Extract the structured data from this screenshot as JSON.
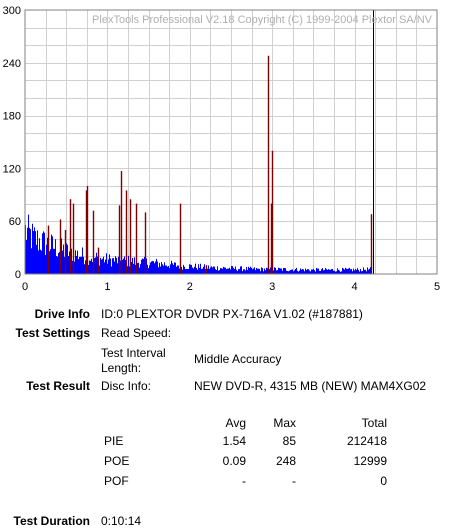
{
  "chart_data": {
    "type": "bar",
    "watermark": "PlexTools Professional V2.18 Copyright (C) 1999-2004 Plextor SA/NV",
    "xlim": [
      0,
      5
    ],
    "ylim": [
      0,
      300
    ],
    "x_ticks": [
      "0",
      "1",
      "2",
      "3",
      "4",
      "5"
    ],
    "y_ticks": [
      "0",
      "60",
      "120",
      "180",
      "240",
      "300"
    ],
    "grid": true,
    "end_marker_x": 4.22,
    "series": [
      {
        "color": "#0000ff",
        "envelope": [
          [
            0.0,
            72
          ],
          [
            0.05,
            66
          ],
          [
            0.1,
            60
          ],
          [
            0.2,
            54
          ],
          [
            0.3,
            48
          ],
          [
            0.4,
            43
          ],
          [
            0.5,
            38
          ],
          [
            0.6,
            34
          ],
          [
            0.7,
            31
          ],
          [
            0.8,
            28
          ],
          [
            0.9,
            26
          ],
          [
            1.0,
            24
          ],
          [
            1.2,
            22
          ],
          [
            1.4,
            20
          ],
          [
            1.6,
            18
          ],
          [
            1.8,
            15
          ],
          [
            2.0,
            13
          ],
          [
            2.2,
            11
          ],
          [
            2.4,
            10
          ],
          [
            2.6,
            9
          ],
          [
            2.8,
            8
          ],
          [
            3.0,
            8
          ],
          [
            3.5,
            7
          ],
          [
            4.0,
            7
          ],
          [
            4.2,
            8
          ]
        ]
      },
      {
        "color": "#800000",
        "spikes": [
          [
            0.28,
            55
          ],
          [
            0.42,
            62
          ],
          [
            0.48,
            50
          ],
          [
            0.55,
            85
          ],
          [
            0.58,
            80
          ],
          [
            0.74,
            95
          ],
          [
            0.75,
            100
          ],
          [
            0.82,
            72
          ],
          [
            0.88,
            30
          ],
          [
            1.14,
            78
          ],
          [
            1.16,
            117
          ],
          [
            1.22,
            95
          ],
          [
            1.28,
            85
          ],
          [
            1.35,
            80
          ],
          [
            1.46,
            70
          ],
          [
            1.88,
            80
          ],
          [
            2.2,
            10
          ],
          [
            2.95,
            248
          ],
          [
            2.98,
            80
          ],
          [
            3.0,
            140
          ],
          [
            4.2,
            68
          ]
        ]
      }
    ]
  },
  "info": {
    "drive_info_label": "Drive Info",
    "drive_info_value": "ID:0 PLEXTOR DVDR PX-716A V1.02 (#187881)",
    "test_settings_label": "Test Settings",
    "read_speed_label": "Read Speed:",
    "interval_label_1": "Test Interval",
    "interval_label_2": "Length:",
    "interval_value": "Middle Accuracy",
    "test_result_label": "Test Result",
    "disc_info_label": "Disc Info:",
    "disc_info_value": "NEW DVD-R, 4315 MB (NEW) MAM4XG02",
    "test_duration_label": "Test Duration",
    "test_duration_value": "0:10:14"
  },
  "results_table": {
    "headers": {
      "avg": "Avg",
      "max": "Max",
      "total": "Total"
    },
    "rows": [
      {
        "name": "PIE",
        "avg": "1.54",
        "max": "85",
        "total": "212418"
      },
      {
        "name": "POE",
        "avg": "0.09",
        "max": "248",
        "total": "12999"
      },
      {
        "name": "POF",
        "avg": "-",
        "max": "-",
        "total": "0"
      }
    ]
  }
}
